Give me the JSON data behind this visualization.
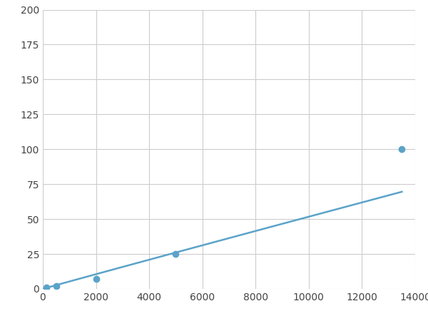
{
  "x_points": [
    0,
    125,
    500,
    2000,
    5000,
    13500
  ],
  "y_points": [
    0,
    1,
    2,
    7,
    25,
    100
  ],
  "line_color": "#5ba3c9",
  "marker_x": [
    125,
    500,
    2000,
    5000,
    13500
  ],
  "marker_y": [
    1,
    2,
    7,
    25,
    100
  ],
  "marker_color": "#5ba3c9",
  "marker_size": 6,
  "line_width": 1.8,
  "xlim": [
    0,
    14000
  ],
  "ylim": [
    0,
    200
  ],
  "xticks": [
    0,
    2000,
    4000,
    6000,
    8000,
    10000,
    12000,
    14000
  ],
  "yticks": [
    0,
    25,
    50,
    75,
    100,
    125,
    150,
    175,
    200
  ],
  "grid_color": "#cccccc",
  "background_color": "#ffffff",
  "figsize": [
    6.0,
    4.5
  ],
  "dpi": 100
}
